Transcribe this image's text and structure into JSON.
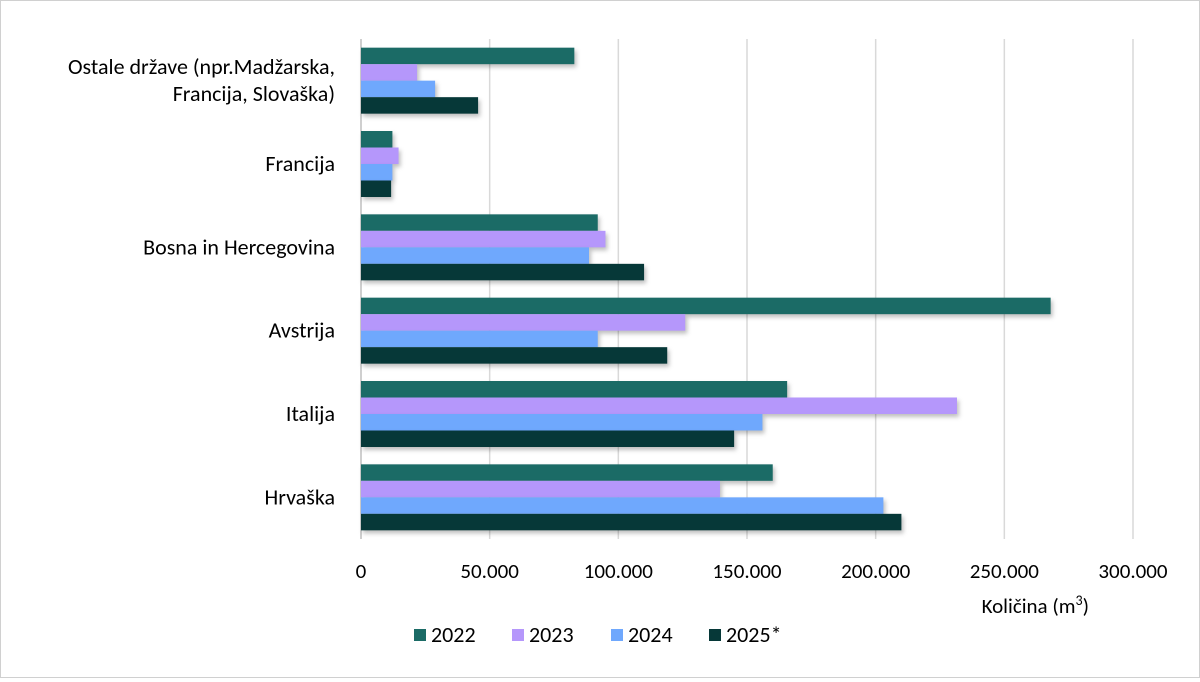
{
  "chart_data": {
    "type": "bar",
    "orientation": "horizontal",
    "categories": [
      "Ostale države (npr.Madžarska, Francija, Slovaška)",
      "Francija",
      "Bosna in Hercegovina",
      "Avstrija",
      "Italija",
      "Hrvaška"
    ],
    "category_lines": [
      [
        "Ostale države (npr.Madžarska,",
        "Francija, Slovaška)"
      ],
      [
        "Francija"
      ],
      [
        "Bosna in Hercegovina"
      ],
      [
        "Avstrija"
      ],
      [
        "Italija"
      ],
      [
        "Hrvaška"
      ]
    ],
    "series": [
      {
        "name": "2022",
        "color": "#1b6b66",
        "values": [
          82900,
          12200,
          92000,
          268000,
          165600,
          160000
        ]
      },
      {
        "name": "2023",
        "color": "#b597fb",
        "values": [
          21800,
          14600,
          95000,
          126000,
          231600,
          139500
        ]
      },
      {
        "name": "2024",
        "color": "#6fa8fd",
        "values": [
          28800,
          12200,
          88600,
          92000,
          156000,
          203000
        ]
      },
      {
        "name": "2025*",
        "color": "#063838",
        "values": [
          45500,
          11700,
          110000,
          119000,
          145000,
          210000
        ]
      }
    ],
    "xlabel": "Količina (m",
    "xlabel_sup": "3",
    "xlabel_end": ")",
    "xlim": [
      0,
      300000
    ],
    "xticks": [
      0,
      50000,
      100000,
      150000,
      200000,
      250000,
      300000
    ],
    "xtick_labels": [
      "0",
      "50.000",
      "100.000",
      "150.000",
      "200.000",
      "250.000",
      "300.000"
    ],
    "grid": "vertical",
    "legend_position": "bottom"
  }
}
